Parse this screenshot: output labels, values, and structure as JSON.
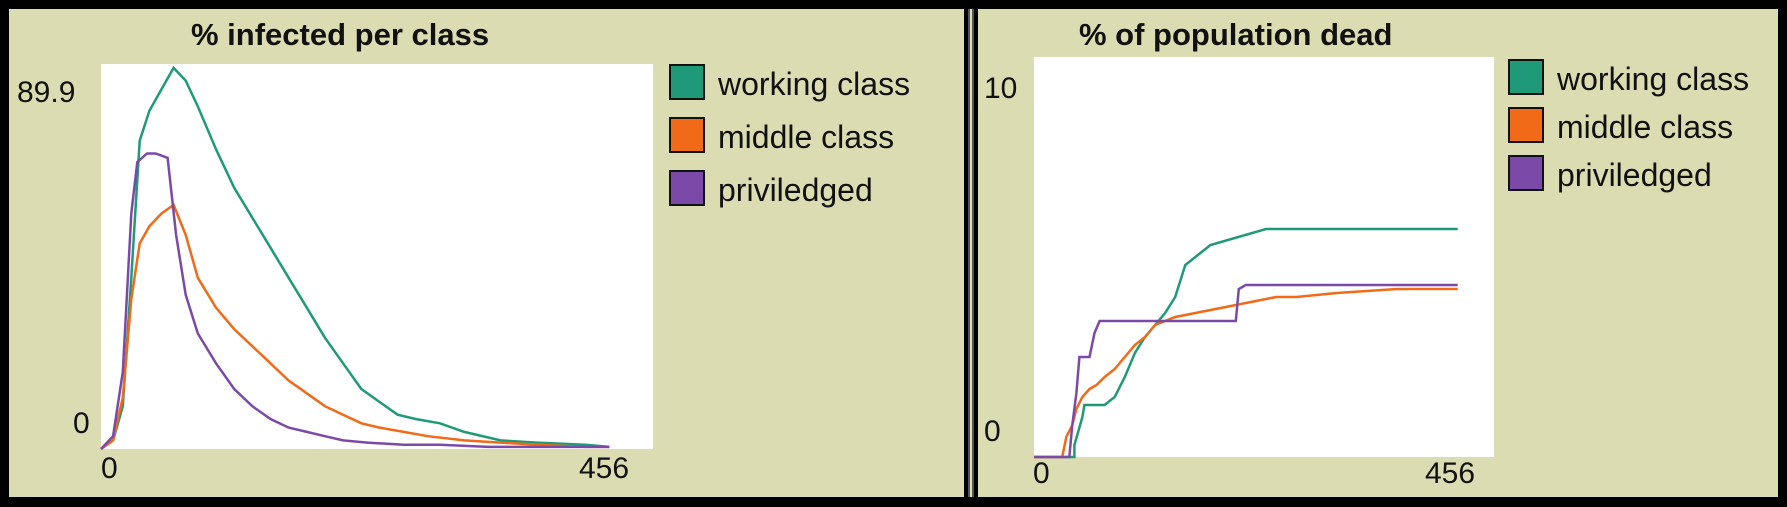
{
  "chart_data": [
    {
      "type": "line",
      "title": "% infected per class",
      "xlim": [
        0,
        456
      ],
      "ylim": [
        0,
        89.9
      ],
      "x_ticks": [
        "0",
        "456"
      ],
      "y_ticks": [
        "0",
        "89.9"
      ],
      "legend": "right",
      "series": [
        {
          "name": "working class",
          "color": "#1e9a78",
          "x": [
            0,
            10,
            18,
            25,
            32,
            40,
            50,
            60,
            70,
            80,
            95,
            110,
            125,
            140,
            155,
            170,
            185,
            200,
            215,
            230,
            245,
            260,
            280,
            300,
            330,
            360,
            400,
            420
          ],
          "y": [
            0,
            2,
            10,
            40,
            72,
            79,
            84,
            89,
            86,
            80,
            70,
            61,
            54,
            47,
            40,
            33,
            26,
            20,
            14,
            11,
            8,
            7,
            6,
            4,
            2,
            1.5,
            1,
            0.5
          ]
        },
        {
          "name": "middle class",
          "color": "#f06a18",
          "x": [
            0,
            10,
            18,
            25,
            32,
            40,
            50,
            60,
            70,
            80,
            95,
            110,
            125,
            140,
            155,
            170,
            185,
            200,
            215,
            230,
            250,
            270,
            300,
            330,
            360,
            400,
            420
          ],
          "y": [
            0,
            2,
            12,
            35,
            48,
            52,
            55,
            57,
            50,
            40,
            33,
            28,
            24,
            20,
            16,
            13,
            10,
            8,
            6,
            5,
            4,
            3,
            2,
            1.5,
            1,
            0.5,
            0.5
          ]
        },
        {
          "name": "priviledged",
          "color": "#7b4aa8",
          "x": [
            0,
            10,
            18,
            25,
            30,
            38,
            45,
            55,
            62,
            70,
            80,
            95,
            110,
            125,
            140,
            155,
            170,
            185,
            200,
            220,
            250,
            280,
            320,
            360,
            400,
            420
          ],
          "y": [
            0,
            3,
            18,
            55,
            67,
            69,
            69,
            68,
            50,
            36,
            27,
            20,
            14,
            10,
            7,
            5,
            4,
            3,
            2,
            1.5,
            1,
            1,
            0.5,
            0.5,
            0.5,
            0.5
          ]
        }
      ]
    },
    {
      "type": "line",
      "title": "% of population dead",
      "xlim": [
        0,
        456
      ],
      "ylim": [
        0,
        10
      ],
      "x_ticks": [
        "0",
        "456"
      ],
      "y_ticks": [
        "0",
        "10"
      ],
      "legend": "right",
      "series": [
        {
          "name": "working class",
          "color": "#1e9a78",
          "x": [
            0,
            40,
            40,
            48,
            50,
            60,
            70,
            80,
            90,
            100,
            110,
            120,
            130,
            140,
            150,
            175,
            230,
            289,
            300,
            360,
            420
          ],
          "y": [
            0,
            0,
            0.3,
            1.0,
            1.3,
            1.3,
            1.3,
            1.5,
            2.0,
            2.6,
            3.0,
            3.3,
            3.6,
            4.0,
            4.8,
            5.3,
            5.7,
            5.7,
            5.7,
            5.7,
            5.7
          ]
        },
        {
          "name": "middle class",
          "color": "#f06a18",
          "x": [
            0,
            28,
            32,
            38,
            42,
            48,
            55,
            62,
            70,
            80,
            90,
            100,
            110,
            120,
            140,
            160,
            180,
            200,
            220,
            240,
            260,
            300,
            360,
            420
          ],
          "y": [
            0,
            0,
            0.5,
            0.8,
            1.2,
            1.5,
            1.7,
            1.8,
            2.0,
            2.2,
            2.5,
            2.8,
            3.0,
            3.3,
            3.5,
            3.6,
            3.7,
            3.8,
            3.9,
            4.0,
            4.0,
            4.1,
            4.2,
            4.2
          ]
        },
        {
          "name": "priviledged",
          "color": "#7b4aa8",
          "x": [
            0,
            35,
            38,
            42,
            45,
            55,
            60,
            65,
            100,
            150,
            190,
            200,
            203,
            210,
            260,
            300,
            360,
            420
          ],
          "y": [
            0,
            0,
            0.8,
            1.6,
            2.5,
            2.5,
            3.1,
            3.4,
            3.4,
            3.4,
            3.4,
            3.4,
            4.2,
            4.3,
            4.3,
            4.3,
            4.3,
            4.3
          ]
        }
      ]
    }
  ]
}
